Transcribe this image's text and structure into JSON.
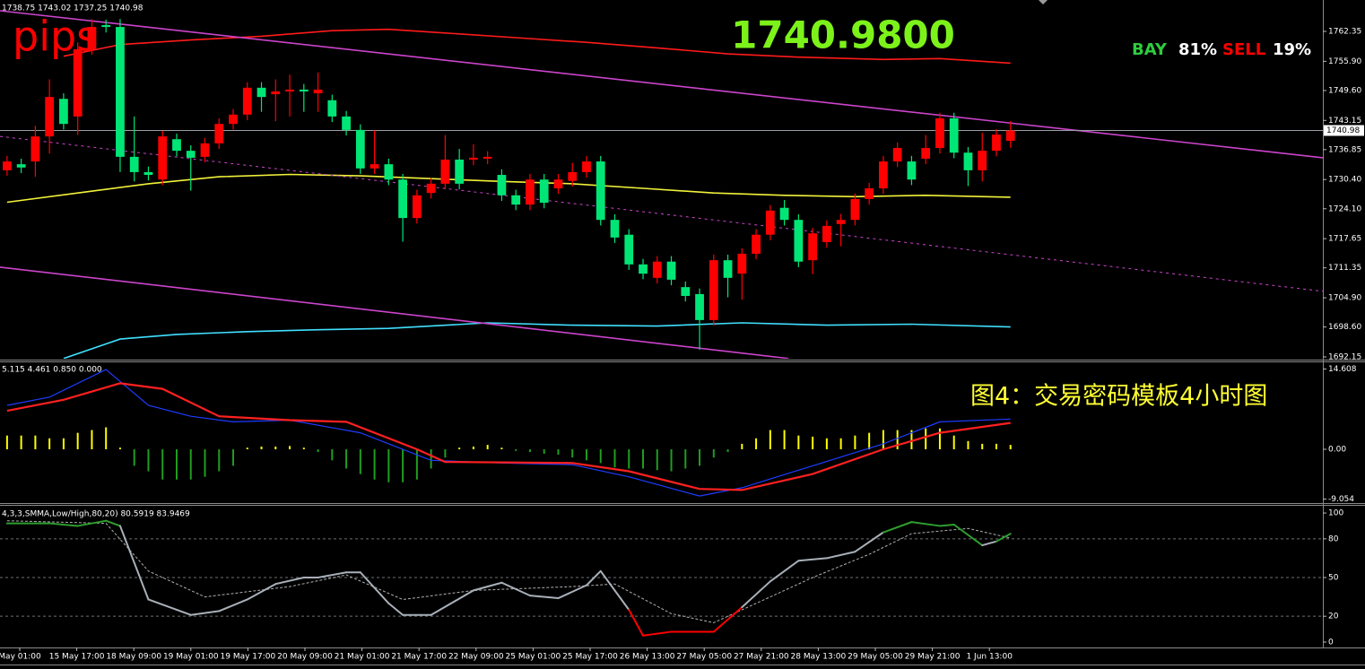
{
  "chart_data": [
    {
      "type": "candlestick",
      "header": "1738.75 1743.02 1737.25 1740.98",
      "watermark": "pips",
      "price_display": "1740.9800",
      "sentiment": [
        {
          "name": "BAY",
          "label": "81%",
          "color": "#2ecc40"
        },
        {
          "name": "SELL",
          "label": "19%",
          "color": "#ff0000"
        }
      ],
      "caption": "图4：交易密码模板4小时图",
      "xlim": [
        -0.5,
        93.1
      ],
      "ylim": [
        1691.76,
        1769.12
      ],
      "yticks": [
        1762.35,
        {
          "value": 1755.9,
          "label": "1755.90"
        },
        {
          "value": 1749.6,
          "label": "1749.60"
        },
        1743.15,
        1736.85,
        {
          "value": 1730.4,
          "label": "1730.40"
        },
        {
          "value": 1724.1,
          "label": "1724.10"
        },
        1717.65,
        1711.35,
        {
          "value": 1704.9,
          "label": "1704.90"
        },
        {
          "value": 1698.6,
          "label": "1698.60"
        },
        1692.15
      ],
      "current_price": 1740.98,
      "up_color": "#ff0000",
      "down_color": "#00e676",
      "ohlc": [
        [
          1732.4,
          1735.5,
          1731.2,
          1734.3
        ],
        [
          1733.7,
          1734.9,
          1731.8,
          1733.0
        ],
        [
          1734.3,
          1742.0,
          1731.0,
          1739.7
        ],
        [
          1739.7,
          1752.0,
          1736.0,
          1748.2
        ],
        [
          1747.8,
          1749.0,
          1741.2,
          1742.4
        ],
        [
          1744.0,
          1760.0,
          1740.0,
          1758.5
        ],
        [
          1758.5,
          1765.0,
          1757.3,
          1763.3
        ],
        [
          1763.7,
          1764.9,
          1762.1,
          1763.3
        ],
        [
          1763.3,
          1765.0,
          1732.0,
          1735.3
        ],
        [
          1735.3,
          1744.0,
          1730.0,
          1732.0
        ],
        [
          1732.0,
          1733.2,
          1730.2,
          1731.4
        ],
        [
          1730.4,
          1740.9,
          1729.2,
          1739.7
        ],
        [
          1739.1,
          1740.3,
          1735.4,
          1736.6
        ],
        [
          1736.6,
          1737.8,
          1728.0,
          1735.1
        ],
        [
          1735.3,
          1739.4,
          1734.1,
          1738.2
        ],
        [
          1738.2,
          1743.6,
          1737.0,
          1742.4
        ],
        [
          1742.4,
          1745.6,
          1741.2,
          1744.4
        ],
        [
          1744.4,
          1751.4,
          1743.2,
          1750.2
        ],
        [
          1750.2,
          1751.4,
          1745.0,
          1748.2
        ],
        [
          1748.8,
          1752.0,
          1743.0,
          1749.4
        ],
        [
          1749.4,
          1753.0,
          1744.0,
          1749.8
        ],
        [
          1749.8,
          1751.0,
          1745.0,
          1749.4
        ],
        [
          1749.0,
          1753.5,
          1745.0,
          1749.8
        ],
        [
          1747.5,
          1748.7,
          1742.8,
          1744.0
        ],
        [
          1744.0,
          1745.2,
          1739.9,
          1741.1
        ],
        [
          1741.1,
          1742.3,
          1731.6,
          1732.8
        ],
        [
          1732.8,
          1741.0,
          1731.6,
          1733.7
        ],
        [
          1733.7,
          1734.9,
          1729.2,
          1730.4
        ],
        [
          1730.4,
          1731.6,
          1717.0,
          1722.1
        ],
        [
          1722.1,
          1728.2,
          1720.9,
          1727.0
        ],
        [
          1727.5,
          1730.7,
          1726.3,
          1729.5
        ],
        [
          1729.5,
          1740.0,
          1728.3,
          1734.7
        ],
        [
          1734.7,
          1737.0,
          1728.3,
          1729.5
        ],
        [
          1734.7,
          1738.0,
          1733.5,
          1735.1
        ],
        [
          1734.9,
          1736.5,
          1733.7,
          1735.3
        ],
        [
          1731.4,
          1732.6,
          1725.8,
          1727.0
        ],
        [
          1727.0,
          1728.2,
          1723.8,
          1725.0
        ],
        [
          1725.0,
          1731.6,
          1723.8,
          1730.4
        ],
        [
          1730.4,
          1731.6,
          1724.2,
          1725.4
        ],
        [
          1728.5,
          1731.6,
          1727.3,
          1730.4
        ],
        [
          1730.1,
          1734.0,
          1728.9,
          1732.0
        ],
        [
          1732.0,
          1735.5,
          1730.8,
          1734.3
        ],
        [
          1734.3,
          1735.5,
          1720.5,
          1721.7
        ],
        [
          1721.7,
          1722.9,
          1716.7,
          1717.9
        ],
        [
          1718.5,
          1719.7,
          1710.9,
          1712.1
        ],
        [
          1712.1,
          1713.3,
          1708.9,
          1710.1
        ],
        [
          1709.2,
          1713.9,
          1708.0,
          1712.7
        ],
        [
          1712.7,
          1713.9,
          1707.6,
          1708.8
        ],
        [
          1707.2,
          1708.4,
          1704.1,
          1705.3
        ],
        [
          1705.7,
          1706.9,
          1693.7,
          1700.1
        ],
        [
          1700.1,
          1714.2,
          1698.9,
          1713.0
        ],
        [
          1713.0,
          1714.2,
          1705.0,
          1709.2
        ],
        [
          1710.1,
          1715.6,
          1704.5,
          1714.4
        ],
        [
          1714.4,
          1719.7,
          1713.2,
          1718.5
        ],
        [
          1718.5,
          1724.9,
          1717.3,
          1723.7
        ],
        [
          1724.3,
          1726.0,
          1720.5,
          1721.7
        ],
        [
          1721.7,
          1722.9,
          1711.5,
          1712.7
        ],
        [
          1713.0,
          1720.0,
          1710.0,
          1718.8
        ],
        [
          1716.9,
          1721.6,
          1715.7,
          1720.4
        ],
        [
          1720.8,
          1723.0,
          1716.0,
          1721.7
        ],
        [
          1721.7,
          1727.4,
          1720.5,
          1726.2
        ],
        [
          1726.2,
          1729.7,
          1725.0,
          1728.5
        ],
        [
          1728.5,
          1735.5,
          1727.3,
          1734.3
        ],
        [
          1734.3,
          1738.4,
          1733.1,
          1737.2
        ],
        [
          1734.3,
          1735.5,
          1729.2,
          1730.4
        ],
        [
          1734.9,
          1740.0,
          1733.7,
          1737.2
        ],
        [
          1737.2,
          1744.8,
          1736.0,
          1743.6
        ],
        [
          1743.6,
          1744.8,
          1735.0,
          1736.2
        ],
        [
          1736.2,
          1737.4,
          1729.0,
          1732.4
        ],
        [
          1732.4,
          1740.5,
          1730.0,
          1736.6
        ],
        [
          1736.6,
          1741.3,
          1735.4,
          1740.1
        ],
        [
          1738.75,
          1743.02,
          1737.25,
          1740.98
        ]
      ],
      "overlays": [
        {
          "color": "#f2f23a",
          "x": [
            0,
            5,
            10,
            15,
            20,
            25,
            30,
            35,
            40,
            45,
            50,
            55,
            60,
            65,
            71
          ],
          "values": [
            1725.5,
            1727.5,
            1729.5,
            1731.0,
            1731.5,
            1731.2,
            1730.6,
            1730.0,
            1729.5,
            1728.5,
            1727.5,
            1727.0,
            1726.7,
            1727.0,
            1726.6
          ]
        },
        {
          "color": "#ff1a1a",
          "x": [
            4,
            8,
            13,
            18,
            23,
            27,
            31,
            36,
            41,
            46,
            51,
            56,
            62,
            66,
            71
          ],
          "values": [
            1757.0,
            1759.5,
            1760.5,
            1761.3,
            1762.5,
            1762.8,
            1762.0,
            1761.0,
            1760.0,
            1758.8,
            1757.5,
            1756.8,
            1756.3,
            1756.5,
            1755.5
          ]
        },
        {
          "color": "#40e0ff",
          "x": [
            4,
            8,
            12,
            17,
            22,
            27,
            34,
            40,
            46,
            52,
            58,
            64,
            71
          ],
          "values": [
            1691.8,
            1696.0,
            1697.0,
            1697.6,
            1698.0,
            1698.3,
            1699.5,
            1699.0,
            1698.8,
            1699.5,
            1699.0,
            1699.2,
            1698.6
          ]
        },
        {
          "color": "#cc44cc",
          "x": [
            -0.5,
            93.1
          ],
          "values": [
            1766.8,
            1735.1
          ]
        },
        {
          "color": "#cc44cc",
          "dashed": true,
          "x": [
            -0.5,
            93.1
          ],
          "values": [
            1739.7,
            1706.3
          ]
        },
        {
          "color": "#cc44cc",
          "x": [
            -0.5,
            55.3
          ],
          "values": [
            1711.5,
            1691.8
          ]
        }
      ]
    },
    {
      "type": "macd",
      "header": "5.115 4.461 0.850 0.000",
      "xlim": [
        -0.5,
        93.1
      ],
      "ylim": [
        -9.62,
        15.66
      ],
      "yticks": [
        14.608,
        {
          "value": 0,
          "label": "0.00"
        },
        -9.054
      ],
      "histogram": {
        "positive_color": "#ffff00",
        "negative_color": "#1f9e1f",
        "values": [
          2.5,
          2.5,
          2.5,
          2.0,
          2.0,
          3.0,
          3.5,
          4.0,
          0.3,
          -3,
          -4,
          -5.5,
          -5.5,
          -5.5,
          -5,
          -4,
          -3,
          0.3,
          0.5,
          0.5,
          0.6,
          0.3,
          -0.5,
          -2,
          -3.5,
          -4.5,
          -5.5,
          -6,
          -6,
          -5.5,
          -3.5,
          -1.5,
          0.3,
          0.5,
          0.8,
          0.3,
          -0.3,
          -0.5,
          -0.8,
          -1,
          -1.5,
          -2,
          -2.5,
          -3.3,
          -3.5,
          -3.5,
          -3.8,
          -4,
          -3.5,
          -3,
          -1.5,
          -0.5,
          1,
          2,
          3.5,
          3.5,
          2.5,
          2.3,
          2,
          2,
          2.5,
          3,
          3.5,
          3.5,
          3.5,
          3.8,
          3.8,
          2.5,
          1.5,
          1,
          1,
          0.8
        ]
      },
      "series": [
        {
          "color": "#1e3cff",
          "x": [
            0,
            3,
            7,
            10,
            13,
            16,
            20,
            25,
            30,
            35,
            40,
            44,
            49,
            52,
            57,
            62,
            66,
            71
          ],
          "values": [
            8,
            9.5,
            14.5,
            8,
            6,
            5,
            5.3,
            3,
            -2,
            -2.5,
            -2.8,
            -5,
            -8.5,
            -7,
            -3,
            1,
            5,
            5.5
          ]
        },
        {
          "color": "#ff2020",
          "x": [
            0,
            4,
            8,
            11,
            15,
            20,
            24,
            29,
            31,
            40,
            44,
            49,
            52,
            57,
            62,
            66,
            71
          ],
          "values": [
            7,
            9,
            12,
            11,
            6,
            5.3,
            5,
            0,
            -2.3,
            -2.5,
            -4,
            -7.2,
            -7.4,
            -4.5,
            0,
            3,
            4.8
          ]
        }
      ]
    },
    {
      "type": "stochastic",
      "header": "4,3,3,SMMA,Low/High,80,20) 80.5919 83.9469",
      "xlim": [
        -0.5,
        93.1
      ],
      "ylim": [
        -4.2,
        104.9
      ],
      "yticks": [
        100,
        80,
        50,
        20,
        0
      ],
      "levels": [
        80,
        50,
        20
      ],
      "main": {
        "color": "#a9b0b8",
        "high_color": "#2e9e2e",
        "low_color": "#ff0000",
        "x": [
          0,
          3,
          5,
          7,
          8,
          10,
          12,
          13,
          15,
          17,
          19,
          21,
          22,
          24,
          25,
          27,
          28,
          30,
          33,
          35,
          37,
          39,
          41,
          42,
          44,
          45,
          47,
          50,
          52,
          54,
          56,
          58,
          60,
          62,
          64,
          66,
          67,
          69,
          70,
          71
        ],
        "values": [
          92,
          92,
          90,
          94,
          90,
          33,
          25,
          21,
          24,
          33,
          45,
          50,
          50,
          54,
          54,
          30,
          21,
          21,
          40,
          46,
          36,
          34,
          44,
          55,
          25,
          5,
          8,
          8,
          27,
          47,
          63,
          65,
          70,
          85,
          93,
          90,
          91,
          75,
          78,
          83.9469
        ]
      },
      "signal": {
        "color": "#b0b0b0",
        "x": [
          0,
          7,
          10,
          14,
          20,
          24,
          28,
          33,
          40,
          43,
          47,
          50,
          53,
          57,
          61,
          64,
          68,
          71
        ],
        "values": [
          94,
          92,
          55,
          35,
          43,
          52,
          33,
          40,
          43,
          45,
          22,
          15,
          30,
          50,
          68,
          84,
          88,
          80.5919
        ]
      },
      "time_labels": [
        "May 01:00",
        "15 May 17:00",
        "18 May 09:00",
        "19 May 01:00",
        "19 May 17:00",
        "20 May 09:00",
        "21 May 01:00",
        "21 May 17:00",
        "22 May 09:00",
        "25 May 01:00",
        "25 May 17:00",
        "26 May 13:00",
        "27 May 05:00",
        "27 May 21:00",
        "28 May 13:00",
        "29 May 05:00",
        "29 May 21:00",
        "1 Jun 13:00"
      ]
    }
  ]
}
